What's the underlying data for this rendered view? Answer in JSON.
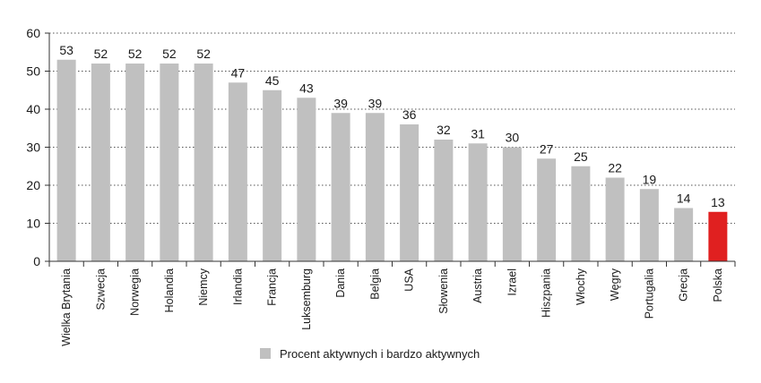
{
  "chart_data": {
    "type": "bar",
    "categories": [
      "Wielka Brytania",
      "Szwecja",
      "Norwegia",
      "Holandia",
      "Niemcy",
      "Irlandia",
      "Francja",
      "Luksemburg",
      "Dania",
      "Belgia",
      "USA",
      "Słowenia",
      "Austria",
      "Izrael",
      "Hiszpania",
      "Włochy",
      "Węgry",
      "Portugalia",
      "Grecja",
      "Polska"
    ],
    "values": [
      53,
      52,
      52,
      52,
      52,
      47,
      45,
      43,
      39,
      39,
      36,
      32,
      31,
      30,
      27,
      25,
      22,
      19,
      14,
      13
    ],
    "yticks": [
      0,
      10,
      20,
      30,
      40,
      50,
      60
    ],
    "ylim": [
      0,
      60
    ],
    "grid": true,
    "grid_style": "dotted",
    "legend": {
      "label": "Procent aktywnych i bardzo aktywnych",
      "position": "bottom"
    },
    "colors": {
      "bar": "#c0c0c0",
      "highlight": "#e02020",
      "highlight_category": "Polska",
      "grid": "#555555",
      "axis": "#333333"
    }
  }
}
